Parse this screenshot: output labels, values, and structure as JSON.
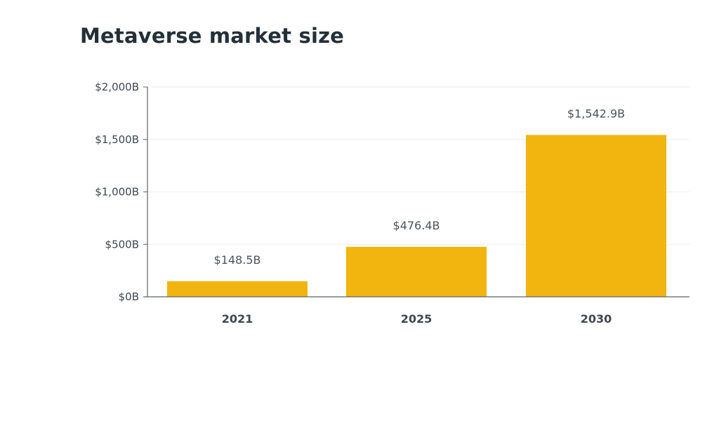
{
  "chart_data": {
    "type": "bar",
    "title": "Metaverse market size",
    "xlabel": "",
    "ylabel": "",
    "categories": [
      "2021",
      "2025",
      "2030"
    ],
    "values": [
      148.5,
      476.4,
      1542.9
    ],
    "value_labels": [
      "$148.5B",
      "$476.4B",
      "$1,542.9B"
    ],
    "ylim": [
      0,
      2000
    ],
    "yticks": [
      0,
      500,
      1000,
      1500,
      2000
    ],
    "ytick_labels": [
      "$0B",
      "$500B",
      "$1,000B",
      "$1,500B",
      "$2,000B"
    ],
    "grid": true,
    "legend": "none",
    "bar_color": "#F2B50F",
    "grid_color": "#ECEEF0",
    "axis_color": "#5A646B"
  }
}
